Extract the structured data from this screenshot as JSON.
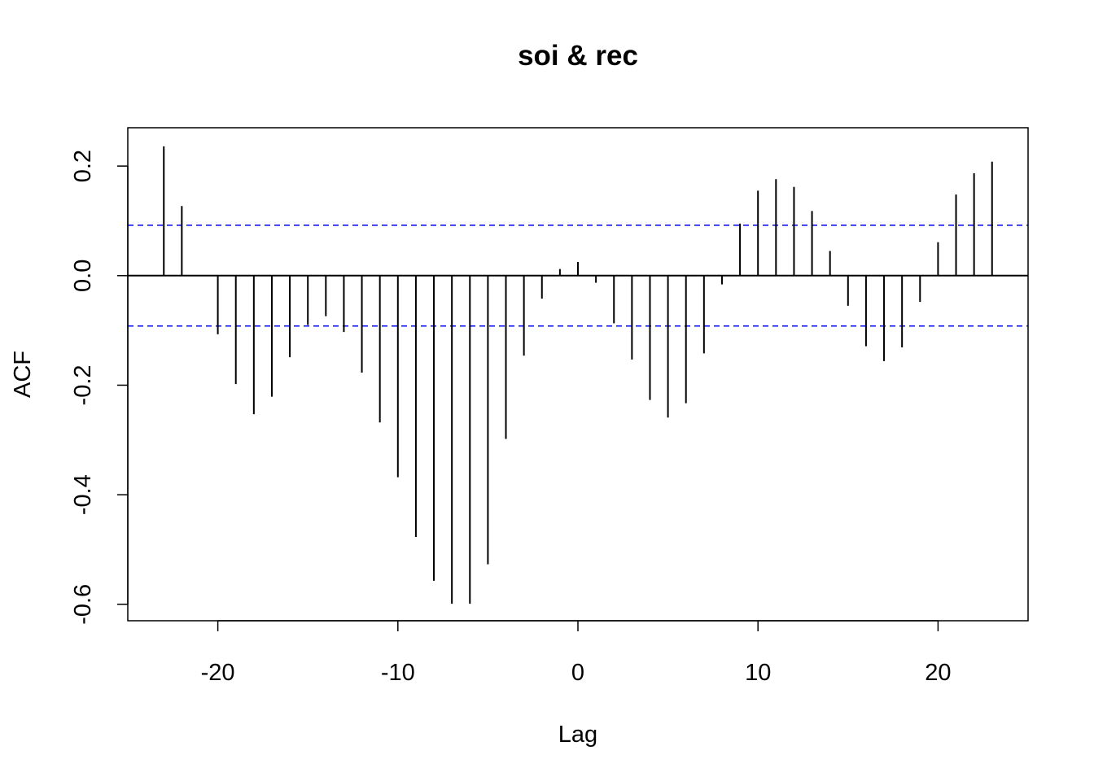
{
  "chart_data": {
    "type": "bar",
    "title": "soi & rec",
    "xlabel": "Lag",
    "ylabel": "ACF",
    "xlim": [
      -25,
      25
    ],
    "ylim": [
      -0.63,
      0.27
    ],
    "x_ticks": [
      -20,
      -10,
      0,
      10,
      20
    ],
    "x_tick_labels": [
      "-20",
      "-10",
      "0",
      "10",
      "20"
    ],
    "y_ticks": [
      -0.6,
      -0.4,
      -0.2,
      0.0,
      0.2
    ],
    "y_tick_labels": [
      "-0.6",
      "-0.4",
      "-0.2",
      "0.0",
      "0.2"
    ],
    "confidence_bound": 0.092,
    "confidence_color": "#0000ff",
    "line_color": "#000000",
    "grid": false,
    "lags": [
      -23,
      -22,
      -21,
      -20,
      -19,
      -18,
      -17,
      -16,
      -15,
      -14,
      -13,
      -12,
      -11,
      -10,
      -9,
      -8,
      -7,
      -6,
      -5,
      -4,
      -3,
      -2,
      -1,
      0,
      1,
      2,
      3,
      4,
      5,
      6,
      7,
      8,
      9,
      10,
      11,
      12,
      13,
      14,
      15,
      16,
      17,
      18,
      19,
      20,
      21,
      22,
      23
    ],
    "values": [
      0.236,
      0.127,
      0.0,
      -0.107,
      -0.198,
      -0.253,
      -0.221,
      -0.149,
      -0.09,
      -0.074,
      -0.103,
      -0.177,
      -0.268,
      -0.368,
      -0.477,
      -0.557,
      -0.599,
      -0.599,
      -0.527,
      -0.298,
      -0.146,
      -0.042,
      0.012,
      0.025,
      -0.013,
      -0.087,
      -0.153,
      -0.227,
      -0.259,
      -0.233,
      -0.142,
      -0.016,
      0.095,
      0.155,
      0.176,
      0.162,
      0.118,
      0.045,
      -0.055,
      -0.129,
      -0.156,
      -0.131,
      -0.048,
      0.061,
      0.148,
      0.187,
      0.208
    ]
  }
}
